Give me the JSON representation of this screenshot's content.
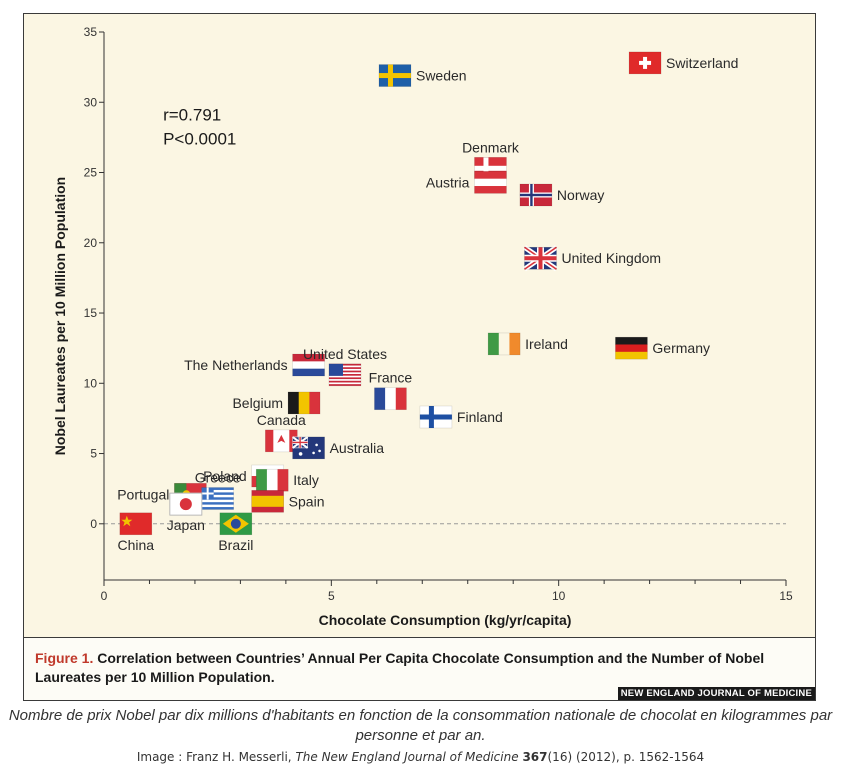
{
  "chart_data": {
    "type": "scatter",
    "xlabel": "Chocolate Consumption (kg/yr/capita)",
    "ylabel": "Nobel Laureates per 10 Million Population",
    "xlim": [
      0,
      15
    ],
    "ylim": [
      -4,
      35
    ],
    "x_ticks": [
      0,
      5,
      10,
      15
    ],
    "y_ticks": [
      0,
      5,
      10,
      15,
      20,
      25,
      30,
      35
    ],
    "grid": false,
    "reference_line_y": 0,
    "annotation": {
      "r": "r=0.791",
      "p": "P<0.0001"
    },
    "points": [
      {
        "name": "Switzerland",
        "x": 11.9,
        "y": 32.8,
        "flag": "switzerland",
        "label_side": "right"
      },
      {
        "name": "Sweden",
        "x": 6.4,
        "y": 31.9,
        "flag": "sweden",
        "label_side": "right"
      },
      {
        "name": "Denmark",
        "x": 8.5,
        "y": 25.3,
        "flag": "denmark",
        "label_side": "top"
      },
      {
        "name": "Austria",
        "x": 8.5,
        "y": 24.3,
        "flag": "austria",
        "label_side": "left"
      },
      {
        "name": "Norway",
        "x": 9.5,
        "y": 23.4,
        "flag": "norway",
        "label_side": "right"
      },
      {
        "name": "United Kingdom",
        "x": 9.6,
        "y": 18.9,
        "flag": "uk",
        "label_side": "right"
      },
      {
        "name": "Ireland",
        "x": 8.8,
        "y": 12.8,
        "flag": "ireland",
        "label_side": "right"
      },
      {
        "name": "Germany",
        "x": 11.6,
        "y": 12.5,
        "flag": "germany",
        "label_side": "right"
      },
      {
        "name": "The Netherlands",
        "x": 4.5,
        "y": 11.3,
        "flag": "netherlands",
        "label_side": "left"
      },
      {
        "name": "United States",
        "x": 5.3,
        "y": 10.6,
        "flag": "usa",
        "label_side": "top"
      },
      {
        "name": "France",
        "x": 6.3,
        "y": 8.9,
        "flag": "france",
        "label_side": "top"
      },
      {
        "name": "Belgium",
        "x": 4.4,
        "y": 8.6,
        "flag": "belgium",
        "label_side": "left"
      },
      {
        "name": "Finland",
        "x": 7.3,
        "y": 7.6,
        "flag": "finland",
        "label_side": "right"
      },
      {
        "name": "Canada",
        "x": 3.9,
        "y": 5.9,
        "flag": "canada",
        "label_side": "top"
      },
      {
        "name": "Australia",
        "x": 4.5,
        "y": 5.4,
        "flag": "australia",
        "label_side": "right"
      },
      {
        "name": "Poland",
        "x": 3.6,
        "y": 3.4,
        "flag": "poland",
        "label_side": "left"
      },
      {
        "name": "Italy",
        "x": 3.7,
        "y": 3.1,
        "flag": "italy",
        "label_side": "right"
      },
      {
        "name": "Portugal",
        "x": 1.9,
        "y": 2.1,
        "flag": "portugal",
        "label_side": "left"
      },
      {
        "name": "Greece",
        "x": 2.5,
        "y": 1.8,
        "flag": "greece",
        "label_side": "top"
      },
      {
        "name": "Spain",
        "x": 3.6,
        "y": 1.6,
        "flag": "spain",
        "label_side": "right"
      },
      {
        "name": "Japan",
        "x": 1.8,
        "y": 1.4,
        "flag": "japan",
        "label_side": "bottom"
      },
      {
        "name": "Brazil",
        "x": 2.9,
        "y": 0.0,
        "flag": "brazil",
        "label_side": "bottom"
      },
      {
        "name": "China",
        "x": 0.7,
        "y": 0.0,
        "flag": "china",
        "label_side": "bottom"
      }
    ]
  },
  "caption": {
    "label": "Figure 1.",
    "text": "Correlation between Countries’ Annual Per Capita Chocolate Consumption and the Number of Nobel Laureates per 10 Million Population."
  },
  "journal": "NEW ENGLAND JOURNAL OF MEDICINE",
  "below_caption": "Nombre de prix Nobel par dix millions d'habitants en fonction de la consommation nationale de chocolat en kilogrammes par personne et par an.",
  "credit": {
    "prefix": "Image : Franz H. Messerli, ",
    "journal_title": "The New England Journal of Medicine",
    "volume": "367",
    "rest": "(16) (2012), p. 1562-1564"
  },
  "colors": {
    "background": "#fbf6e3",
    "caption_label": "#c0392b"
  }
}
